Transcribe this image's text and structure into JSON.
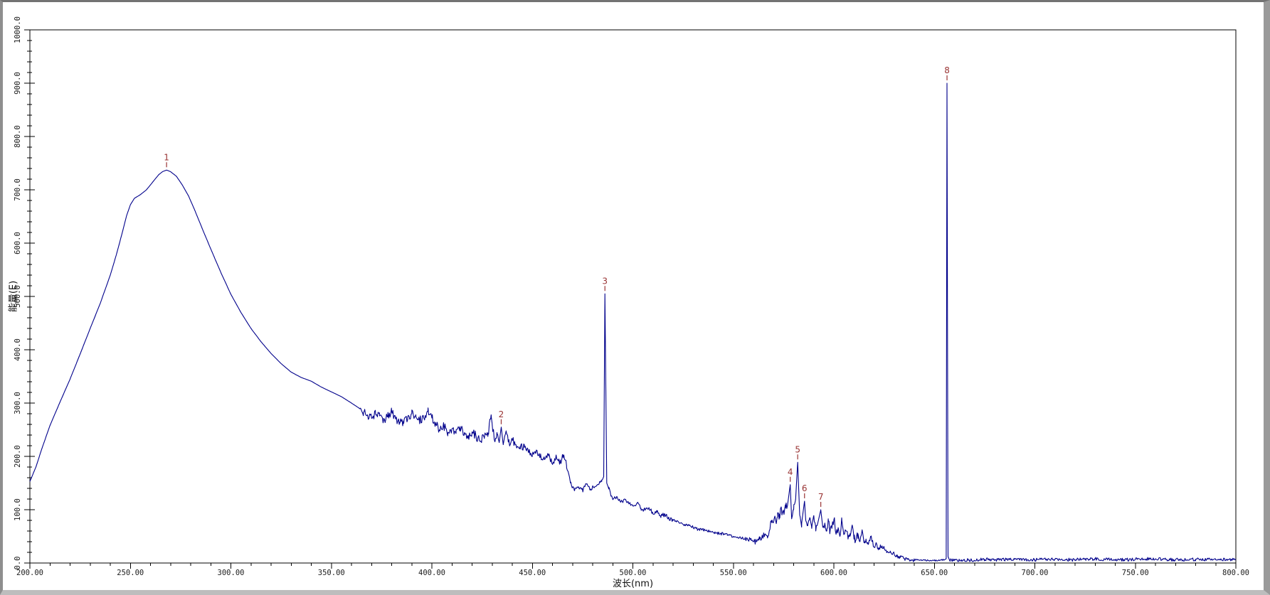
{
  "window": {
    "background": "#ffffff",
    "frame_border_dark": "#737373",
    "frame_border_light": "#bdbdbd"
  },
  "chart_data": {
    "type": "line",
    "title": "",
    "xlabel": "波长(nm)",
    "ylabel": "能量(E)",
    "xlim": [
      200,
      800
    ],
    "ylim": [
      0,
      1000
    ],
    "x_major_step": 50,
    "x_minor_step": 10,
    "y_major_step": 100,
    "y_minor_step": 20,
    "grid": false,
    "legend": "none",
    "axis_color": "#000000",
    "tick_label_color": "#1c1c1c",
    "line_color": "#00008b",
    "peak_label_color": "#993333",
    "x_tick_labels": [
      "200.00",
      "250.00",
      "300.00",
      "350.00",
      "400.00",
      "450.00",
      "500.00",
      "550.00",
      "600.00",
      "650.00",
      "700.00",
      "750.00",
      "800.00"
    ],
    "y_tick_labels": [
      "0.0",
      "100.0",
      "200.0",
      "300.0",
      "400.0",
      "500.0",
      "600.0",
      "700.0",
      "800.0",
      "900.0",
      "1000.0"
    ],
    "peaks": [
      {
        "label": "1",
        "x": 268,
        "y": 737
      },
      {
        "label": "2",
        "x": 434.5,
        "y": 255
      },
      {
        "label": "3",
        "x": 486.1,
        "y": 505
      },
      {
        "label": "4",
        "x": 578.3,
        "y": 147
      },
      {
        "label": "5",
        "x": 582,
        "y": 189
      },
      {
        "label": "6",
        "x": 585.4,
        "y": 116
      },
      {
        "label": "7",
        "x": 593.5,
        "y": 100
      },
      {
        "label": "8",
        "x": 656.3,
        "y": 900
      }
    ],
    "noise_seed": 12345,
    "noise_segments": [
      [
        364,
        446,
        8
      ],
      [
        446,
        468,
        6
      ],
      [
        468,
        486,
        4
      ],
      [
        487,
        520,
        4
      ],
      [
        520,
        558,
        3
      ],
      [
        558,
        568,
        5
      ],
      [
        568,
        612,
        9
      ],
      [
        612,
        640,
        4
      ],
      [
        640,
        655,
        1.5
      ],
      [
        657,
        800,
        3
      ]
    ],
    "series": [
      {
        "name": "spectrum",
        "points": [
          [
            200,
            153
          ],
          [
            203,
            180
          ],
          [
            206,
            215
          ],
          [
            210,
            258
          ],
          [
            215,
            302
          ],
          [
            220,
            345
          ],
          [
            225,
            392
          ],
          [
            230,
            440
          ],
          [
            235,
            487
          ],
          [
            240,
            540
          ],
          [
            243,
            578
          ],
          [
            246,
            620
          ],
          [
            248,
            650
          ],
          [
            250,
            672
          ],
          [
            252,
            684
          ],
          [
            255,
            691
          ],
          [
            258,
            700
          ],
          [
            261,
            714
          ],
          [
            264,
            728
          ],
          [
            266,
            734
          ],
          [
            268,
            737
          ],
          [
            270,
            734
          ],
          [
            273,
            725
          ],
          [
            276,
            708
          ],
          [
            279,
            688
          ],
          [
            282,
            662
          ],
          [
            286,
            625
          ],
          [
            290,
            589
          ],
          [
            295,
            545
          ],
          [
            300,
            504
          ],
          [
            305,
            470
          ],
          [
            310,
            440
          ],
          [
            315,
            415
          ],
          [
            320,
            393
          ],
          [
            325,
            374
          ],
          [
            330,
            358
          ],
          [
            335,
            348
          ],
          [
            340,
            341
          ],
          [
            345,
            330
          ],
          [
            350,
            321
          ],
          [
            355,
            312
          ],
          [
            360,
            300
          ],
          [
            364,
            290
          ],
          [
            366,
            282
          ],
          [
            368,
            278
          ],
          [
            370,
            272
          ],
          [
            372,
            280
          ],
          [
            374,
            276
          ],
          [
            376,
            268
          ],
          [
            378,
            274
          ],
          [
            380,
            284
          ],
          [
            382,
            270
          ],
          [
            384,
            264
          ],
          [
            386,
            262
          ],
          [
            388,
            274
          ],
          [
            390,
            280
          ],
          [
            392,
            278
          ],
          [
            394,
            268
          ],
          [
            396,
            272
          ],
          [
            398,
            285
          ],
          [
            400,
            272
          ],
          [
            402,
            260
          ],
          [
            404,
            250
          ],
          [
            406,
            256
          ],
          [
            408,
            245
          ],
          [
            410,
            252
          ],
          [
            412,
            243
          ],
          [
            414,
            256
          ],
          [
            416,
            240
          ],
          [
            418,
            234
          ],
          [
            420,
            246
          ],
          [
            422,
            238
          ],
          [
            424,
            228
          ],
          [
            426,
            236
          ],
          [
            428,
            244
          ],
          [
            429.5,
            278
          ],
          [
            431,
            232
          ],
          [
            432.5,
            242
          ],
          [
            433.5,
            226
          ],
          [
            434.5,
            255
          ],
          [
            435.5,
            222
          ],
          [
            437,
            246
          ],
          [
            438.5,
            224
          ],
          [
            440,
            232
          ],
          [
            442,
            220
          ],
          [
            444,
            214
          ],
          [
            446,
            222
          ],
          [
            448,
            208
          ],
          [
            450,
            204
          ],
          [
            452,
            212
          ],
          [
            454,
            199
          ],
          [
            456,
            194
          ],
          [
            458,
            201
          ],
          [
            460,
            186
          ],
          [
            462,
            199
          ],
          [
            464,
            188
          ],
          [
            465.5,
            203
          ],
          [
            467,
            183
          ],
          [
            469,
            150
          ],
          [
            471,
            136
          ],
          [
            473,
            143
          ],
          [
            475,
            136
          ],
          [
            477,
            148
          ],
          [
            479,
            139
          ],
          [
            481,
            143
          ],
          [
            483,
            148
          ],
          [
            484.5,
            153
          ],
          [
            485.5,
            162
          ],
          [
            486.1,
            505
          ],
          [
            487,
            150
          ],
          [
            488,
            139
          ],
          [
            490,
            119
          ],
          [
            492,
            125
          ],
          [
            494,
            114
          ],
          [
            496,
            120
          ],
          [
            498,
            111
          ],
          [
            500,
            107
          ],
          [
            502,
            112
          ],
          [
            504,
            103
          ],
          [
            506,
            99
          ],
          [
            508,
            104
          ],
          [
            510,
            92
          ],
          [
            512,
            96
          ],
          [
            514,
            88
          ],
          [
            516,
            91
          ],
          [
            518,
            83
          ],
          [
            520,
            80
          ],
          [
            523,
            75
          ],
          [
            526,
            71
          ],
          [
            529,
            68
          ],
          [
            532,
            64
          ],
          [
            535,
            62
          ],
          [
            538,
            59
          ],
          [
            541,
            57
          ],
          [
            544,
            55
          ],
          [
            547,
            52
          ],
          [
            550,
            50
          ],
          [
            553,
            48
          ],
          [
            556,
            45
          ],
          [
            559,
            42
          ],
          [
            561,
            40
          ],
          [
            563,
            45
          ],
          [
            565,
            52
          ],
          [
            567,
            47
          ],
          [
            569,
            76
          ],
          [
            571,
            80
          ],
          [
            572,
            87
          ],
          [
            573,
            92
          ],
          [
            574,
            99
          ],
          [
            575,
            95
          ],
          [
            576,
            103
          ],
          [
            577,
            110
          ],
          [
            578.3,
            147
          ],
          [
            579,
            83
          ],
          [
            580,
            100
          ],
          [
            581,
            120
          ],
          [
            582,
            189
          ],
          [
            583,
            90
          ],
          [
            584,
            75
          ],
          [
            585.4,
            116
          ],
          [
            586,
            80
          ],
          [
            587,
            70
          ],
          [
            588,
            85
          ],
          [
            589,
            65
          ],
          [
            590,
            89
          ],
          [
            591,
            60
          ],
          [
            592,
            75
          ],
          [
            593.5,
            100
          ],
          [
            594.5,
            67
          ],
          [
            595.5,
            75
          ],
          [
            596.5,
            60
          ],
          [
            597.2,
            83
          ],
          [
            598,
            55
          ],
          [
            599,
            65
          ],
          [
            600.3,
            85
          ],
          [
            601,
            56
          ],
          [
            602,
            62
          ],
          [
            603,
            50
          ],
          [
            604,
            79
          ],
          [
            605,
            55
          ],
          [
            606,
            60
          ],
          [
            607,
            47
          ],
          [
            608,
            55
          ],
          [
            609,
            69
          ],
          [
            610,
            45
          ],
          [
            611,
            43
          ],
          [
            612,
            55
          ],
          [
            613,
            40
          ],
          [
            614,
            60
          ],
          [
            615,
            38
          ],
          [
            616,
            45
          ],
          [
            617,
            35
          ],
          [
            618.5,
            49
          ],
          [
            620,
            30
          ],
          [
            621,
            38
          ],
          [
            622,
            28
          ],
          [
            624,
            32
          ],
          [
            626,
            24
          ],
          [
            628,
            20
          ],
          [
            630,
            17
          ],
          [
            631.5,
            12
          ],
          [
            633,
            10
          ],
          [
            635,
            9
          ],
          [
            637,
            7
          ],
          [
            640,
            6
          ],
          [
            644,
            5
          ],
          [
            648,
            5
          ],
          [
            652,
            5
          ],
          [
            655,
            6
          ],
          [
            655.9,
            8
          ],
          [
            656.3,
            900
          ],
          [
            656.8,
            12
          ],
          [
            657.5,
            6
          ],
          [
            660,
            5
          ],
          [
            665,
            6
          ],
          [
            670,
            5
          ],
          [
            675,
            7
          ],
          [
            680,
            6
          ],
          [
            690,
            7
          ],
          [
            700,
            6
          ],
          [
            710,
            7
          ],
          [
            720,
            6
          ],
          [
            730,
            8
          ],
          [
            740,
            6
          ],
          [
            750,
            7
          ],
          [
            760,
            8
          ],
          [
            770,
            6
          ],
          [
            780,
            7
          ],
          [
            790,
            6
          ],
          [
            800,
            7
          ]
        ]
      }
    ]
  }
}
